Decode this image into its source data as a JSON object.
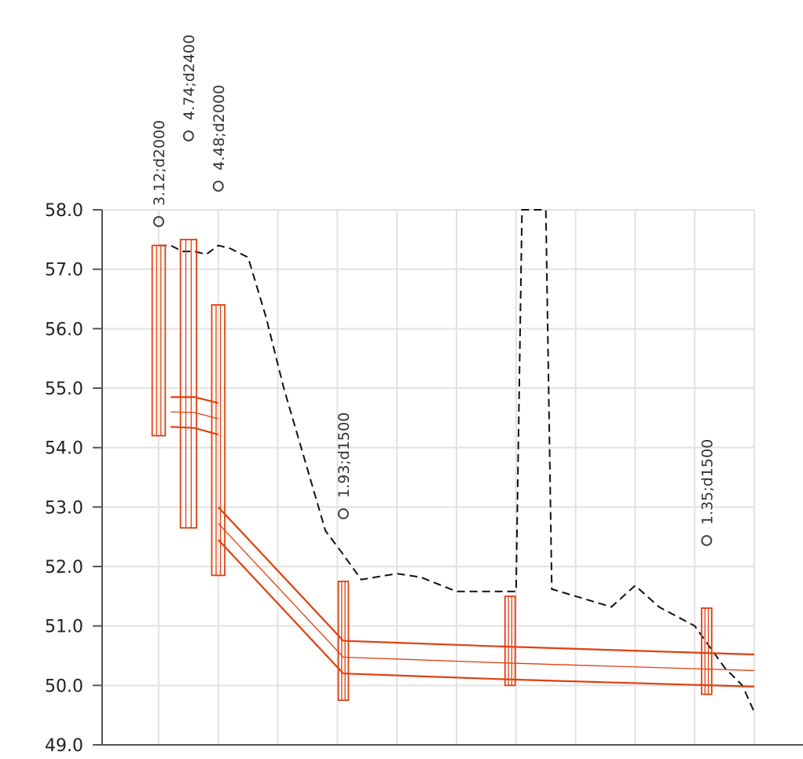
{
  "chart_data": {
    "type": "line",
    "ylim": [
      49.0,
      58.0
    ],
    "y_ticks": [
      "58.0",
      "57.0",
      "56.0",
      "55.0",
      "54.0",
      "53.0",
      "52.0",
      "51.0",
      "50.0",
      "49.0"
    ],
    "grid": true,
    "x_range": [
      0,
      100
    ],
    "ground_profile": {
      "x": [
        0,
        2,
        4,
        6,
        8,
        10,
        12,
        15,
        18,
        21,
        28,
        31,
        34,
        40,
        44,
        50,
        55,
        60,
        61,
        65,
        66,
        76,
        80,
        84,
        90,
        95,
        98,
        100
      ],
      "y": [
        57.4,
        57.4,
        57.3,
        57.3,
        57.25,
        57.4,
        57.35,
        57.2,
        56.2,
        55.0,
        52.6,
        52.2,
        51.78,
        51.88,
        51.82,
        51.58,
        51.58,
        51.58,
        58.0,
        58.0,
        51.62,
        51.32,
        51.68,
        51.32,
        51.0,
        50.3,
        50.0,
        49.55
      ]
    },
    "pipes": [
      {
        "x": [
          2,
          6,
          10
        ],
        "invert": [
          54.35,
          54.33,
          54.22
        ],
        "obvert": [
          54.85,
          54.85,
          54.75
        ]
      },
      {
        "x": [
          10,
          31
        ],
        "invert": [
          52.45,
          50.2
        ],
        "obvert": [
          53.0,
          50.75
        ]
      },
      {
        "x": [
          31,
          59
        ],
        "invert": [
          50.2,
          50.1
        ],
        "obvert": [
          50.75,
          50.65
        ]
      },
      {
        "x": [
          59,
          100
        ],
        "invert": [
          50.1,
          49.98
        ],
        "obvert": [
          50.65,
          50.52
        ]
      }
    ],
    "manholes": [
      {
        "label": "3.12;d2000",
        "x": 0,
        "top": 57.4,
        "bottom": 54.2,
        "width": 2.2
      },
      {
        "label": "4.74;d2400",
        "x": 5,
        "top": 57.5,
        "bottom": 52.65,
        "width": 2.7
      },
      {
        "label": "4.48;d2000",
        "x": 10,
        "top": 56.4,
        "bottom": 51.85,
        "width": 2.2
      },
      {
        "label": "1.93;d1500",
        "x": 31,
        "top": 51.75,
        "bottom": 49.75,
        "width": 1.7
      },
      {
        "label": "",
        "x": 59,
        "top": 51.5,
        "bottom": 50.0,
        "width": 1.7
      },
      {
        "label": "1.35;d1500",
        "x": 92,
        "top": 51.3,
        "bottom": 49.85,
        "width": 1.7
      }
    ]
  }
}
